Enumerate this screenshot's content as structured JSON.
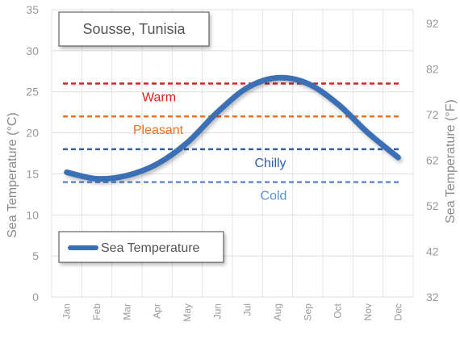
{
  "chart_data": {
    "type": "line",
    "title": "Sousse, Tunisia",
    "xlabel": "",
    "ylabel": "Sea Temperature (°C)",
    "ylabel_right": "Sea Temperature (°F)",
    "categories": [
      "Jan",
      "Feb",
      "Mar",
      "Apr",
      "May",
      "Jun",
      "Jul",
      "Aug",
      "Sep",
      "Oct",
      "Nov",
      "Dec"
    ],
    "ylim": [
      0,
      35
    ],
    "y_ticks": [
      0,
      5,
      10,
      15,
      20,
      25,
      30,
      35
    ],
    "ylim_right": [
      32,
      95
    ],
    "y_ticks_right": [
      32,
      42,
      52,
      62,
      72,
      82,
      92
    ],
    "grid": true,
    "legend_position": "bottom-left",
    "series": [
      {
        "name": "Sea Temperature",
        "color": "#3a6fb5",
        "values": [
          15.2,
          14.4,
          14.8,
          16.2,
          18.8,
          22.5,
          25.5,
          26.7,
          26.0,
          23.5,
          20.0,
          17.0
        ]
      }
    ],
    "thresholds": [
      {
        "label": "Warm",
        "value": 26,
        "color": "#e02020"
      },
      {
        "label": "Pleasant",
        "value": 22,
        "color": "#f07020"
      },
      {
        "label": "Chilly",
        "value": 18,
        "color": "#3060a8"
      },
      {
        "label": "Cold",
        "value": 14,
        "color": "#5a90d8"
      }
    ]
  }
}
